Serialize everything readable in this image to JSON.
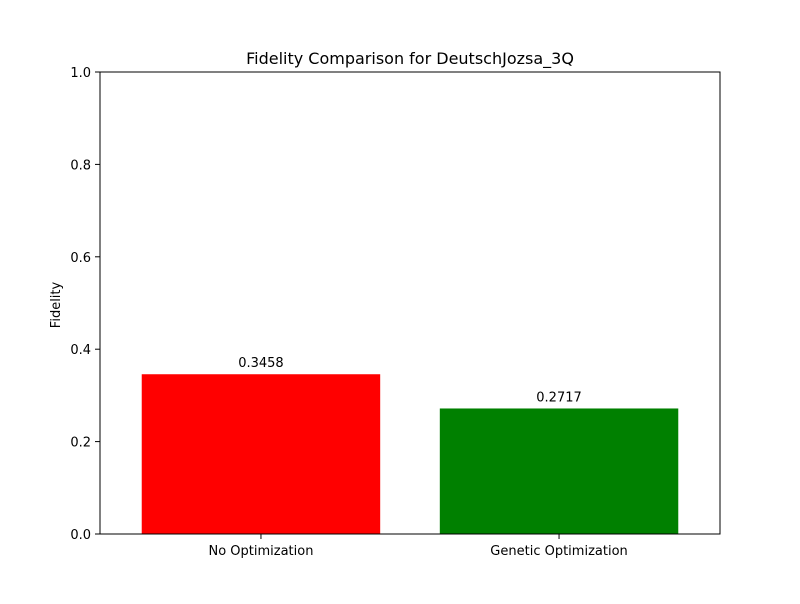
{
  "chart_data": {
    "type": "bar",
    "title": "Fidelity Comparison for DeutschJozsa_3Q",
    "xlabel": "",
    "ylabel": "Fidelity",
    "categories": [
      "No Optimization",
      "Genetic Optimization"
    ],
    "values": [
      0.3458,
      0.2717
    ],
    "data_labels": [
      "0.3458",
      "0.2717"
    ],
    "bar_colors": [
      "#ff0000",
      "#008000"
    ],
    "ylim": [
      0,
      1.0
    ],
    "yticks": [
      0.0,
      0.2,
      0.4,
      0.6,
      0.8,
      1.0
    ],
    "ytick_labels": [
      "0.0",
      "0.2",
      "0.4",
      "0.6",
      "0.8",
      "1.0"
    ],
    "grid": false,
    "legend": "none"
  }
}
